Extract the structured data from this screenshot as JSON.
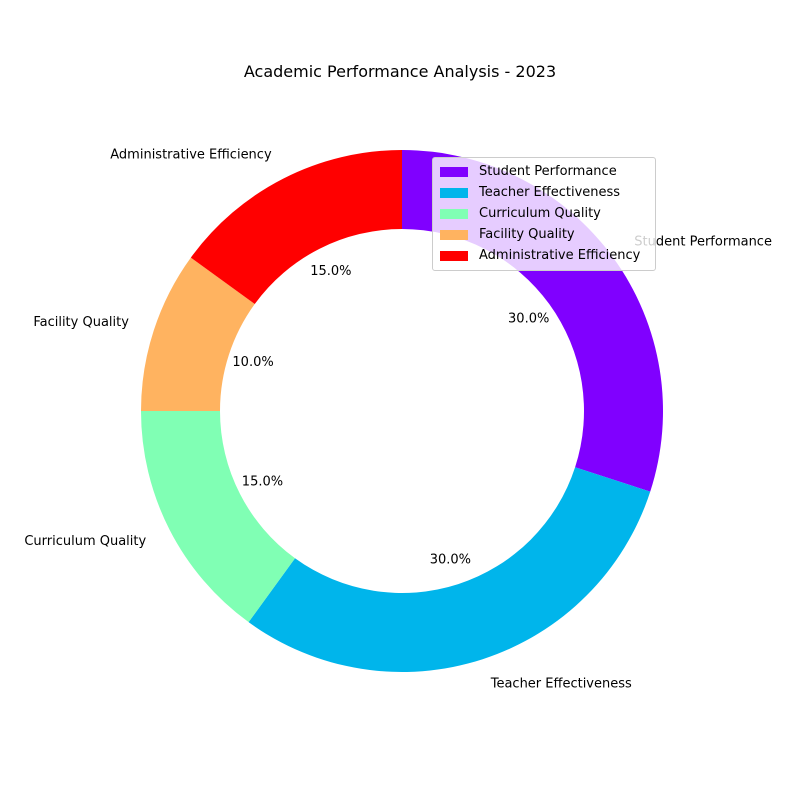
{
  "chart_data": {
    "type": "pie",
    "variant": "donut",
    "title": "Academic Performance Analysis - 2023",
    "labels": [
      "Student Performance",
      "Teacher Effectiveness",
      "Curriculum Quality",
      "Facility Quality",
      "Administrative Efficiency"
    ],
    "values": [
      30,
      30,
      15,
      10,
      15
    ],
    "percent_labels": [
      "30.0%",
      "30.0%",
      "15.0%",
      "10.0%",
      "15.0%"
    ],
    "colors": [
      "#8000ff",
      "#00b5eb",
      "#80ffb4",
      "#ffb360",
      "#ff0000"
    ],
    "start_angle_deg": 90,
    "direction": "clockwise",
    "legend": {
      "position": "top-right",
      "entries": [
        "Student Performance",
        "Teacher Effectiveness",
        "Curriculum Quality",
        "Facility Quality",
        "Administrative Efficiency"
      ]
    }
  }
}
